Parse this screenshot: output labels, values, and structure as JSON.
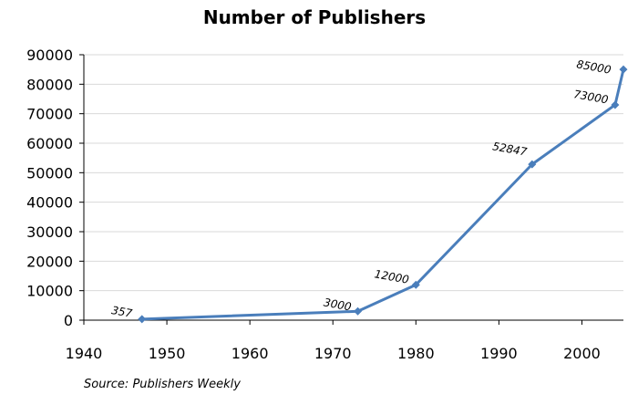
{
  "chart_data": {
    "type": "line",
    "title": "Number of Publishers",
    "source": "Source: Publishers Weekly",
    "xlabel": "",
    "ylabel": "",
    "xlim": [
      1940,
      2005
    ],
    "ylim": [
      0,
      90000
    ],
    "x_ticks": [
      "1940",
      "1950",
      "1960",
      "1970",
      "1980",
      "1990",
      "2000"
    ],
    "y_ticks": [
      "0",
      "10000",
      "20000",
      "30000",
      "40000",
      "50000",
      "60000",
      "70000",
      "80000",
      "90000"
    ],
    "grid": true,
    "line_color": "#4a7ebb",
    "series": [
      {
        "x": [
          1947,
          1973,
          1980,
          1994,
          2004,
          2005
        ],
        "values": [
          357,
          3000,
          12000,
          52847,
          73000,
          85000
        ],
        "labels": [
          "357",
          "3000",
          "12000",
          "52847",
          "73000",
          "85000"
        ]
      }
    ]
  }
}
